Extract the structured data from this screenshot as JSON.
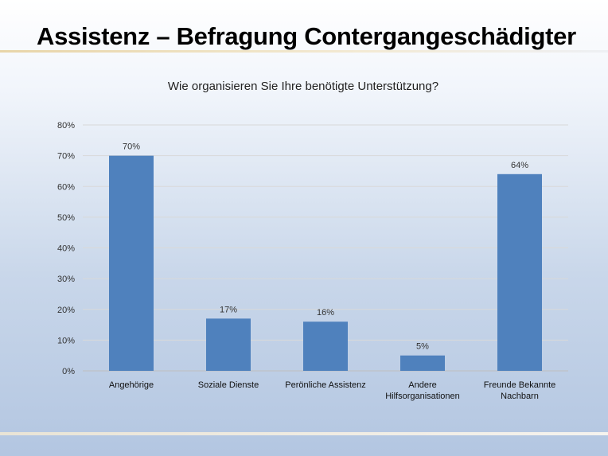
{
  "slide": {
    "title": "Assistenz – Befragung Contergangeschädigter"
  },
  "colors": {
    "bar": "#4f81bd",
    "grid": "#d9d9d9",
    "axis": "#bfbfbf"
  },
  "chart_data": {
    "type": "bar",
    "title": "Wie organisieren Sie Ihre benötigte Unterstützung?",
    "categories": [
      [
        "Angehörige"
      ],
      [
        "Soziale Dienste"
      ],
      [
        "Perönliche Assistenz"
      ],
      [
        "Andere",
        "Hilfsorganisationen"
      ],
      [
        "Freunde Bekannte",
        "Nachbarn"
      ]
    ],
    "values": [
      70,
      17,
      16,
      5,
      64
    ],
    "data_labels": [
      "70%",
      "17%",
      "16%",
      "5%",
      "64%"
    ],
    "y_ticks": [
      "0%",
      "10%",
      "20%",
      "30%",
      "40%",
      "50%",
      "60%",
      "70%",
      "80%"
    ],
    "ylim": [
      0,
      80
    ],
    "grid": true,
    "legend": "none",
    "xlabel": "",
    "ylabel": ""
  }
}
